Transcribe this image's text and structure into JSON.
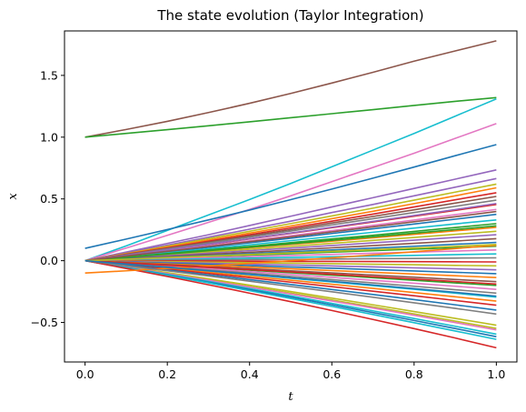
{
  "chart_data": {
    "type": "line",
    "title": "The state evolution (Taylor Integration)",
    "xlabel": "t",
    "ylabel": "x",
    "xlim": [
      -0.05,
      1.05
    ],
    "ylim": [
      -0.82,
      1.86
    ],
    "xticks": [
      0.0,
      0.2,
      0.4,
      0.6,
      0.8,
      1.0
    ],
    "xtick_labels": [
      "0.0",
      "0.2",
      "0.4",
      "0.6",
      "0.8",
      "1.0"
    ],
    "yticks": [
      -0.5,
      0.0,
      0.5,
      1.0,
      1.5
    ],
    "ytick_labels": [
      "−0.5",
      "0.0",
      "0.5",
      "1.0",
      "1.5"
    ],
    "grid": false,
    "legend": "none",
    "x": [
      0.0,
      0.1,
      0.2,
      0.3,
      0.4,
      0.5,
      0.6,
      0.7,
      0.8,
      0.9,
      1.0
    ],
    "palette": [
      "#1f77b4",
      "#ff7f0e",
      "#2ca02c",
      "#d62728",
      "#9467bd",
      "#8c564b",
      "#e377c2",
      "#7f7f7f",
      "#bcbd22",
      "#17becf"
    ],
    "series": [
      {
        "color": "#8c564b",
        "values": [
          1.0,
          1.062,
          1.128,
          1.199,
          1.274,
          1.354,
          1.438,
          1.525,
          1.615,
          1.698,
          1.78
        ]
      },
      {
        "color": "#2ca02c",
        "values": [
          1.0,
          1.03,
          1.061,
          1.092,
          1.124,
          1.157,
          1.19,
          1.223,
          1.257,
          1.29,
          1.32
        ]
      },
      {
        "color": "#17becf",
        "values": [
          0.0,
          0.12,
          0.245,
          0.37,
          0.495,
          0.625,
          0.76,
          0.895,
          1.03,
          1.17,
          1.31
        ]
      },
      {
        "color": "#e377c2",
        "values": [
          0.0,
          0.102,
          0.205,
          0.31,
          0.415,
          0.525,
          0.64,
          0.755,
          0.87,
          0.99,
          1.11
        ]
      },
      {
        "color": "#1f77b4",
        "values": [
          0.1,
          0.175,
          0.252,
          0.33,
          0.41,
          0.494,
          0.58,
          0.668,
          0.758,
          0.85,
          0.94
        ]
      },
      {
        "color": "#9467bd",
        "values": [
          0.0,
          0.07,
          0.14,
          0.21,
          0.285,
          0.36,
          0.435,
          0.51,
          0.585,
          0.66,
          0.735
        ]
      },
      {
        "color": "#9467bd",
        "values": [
          0.0,
          0.063,
          0.126,
          0.19,
          0.255,
          0.32,
          0.39,
          0.455,
          0.525,
          0.595,
          0.665
        ]
      },
      {
        "color": "#bcbd22",
        "values": [
          0.0,
          0.058,
          0.118,
          0.178,
          0.238,
          0.3,
          0.362,
          0.425,
          0.49,
          0.555,
          0.62
        ]
      },
      {
        "color": "#ff7f0e",
        "values": [
          0.0,
          0.055,
          0.11,
          0.166,
          0.223,
          0.28,
          0.34,
          0.4,
          0.462,
          0.525,
          0.59
        ]
      },
      {
        "color": "#d62728",
        "values": [
          0.0,
          0.052,
          0.104,
          0.157,
          0.21,
          0.265,
          0.32,
          0.377,
          0.435,
          0.493,
          0.55
        ]
      },
      {
        "color": "#8c564b",
        "values": [
          0.0,
          0.05,
          0.1,
          0.15,
          0.2,
          0.252,
          0.305,
          0.358,
          0.412,
          0.466,
          0.52
        ]
      },
      {
        "color": "#7f7f7f",
        "values": [
          0.0,
          0.047,
          0.095,
          0.143,
          0.191,
          0.24,
          0.29,
          0.34,
          0.39,
          0.44,
          0.49
        ]
      },
      {
        "color": "#d62728",
        "values": [
          0.0,
          0.043,
          0.087,
          0.131,
          0.176,
          0.221,
          0.267,
          0.313,
          0.36,
          0.407,
          0.455
        ]
      },
      {
        "color": "#e377c2",
        "values": [
          0.0,
          0.04,
          0.08,
          0.12,
          0.161,
          0.202,
          0.244,
          0.286,
          0.329,
          0.372,
          0.415
        ]
      },
      {
        "color": "#1f77b4",
        "values": [
          0.0,
          0.036,
          0.072,
          0.108,
          0.145,
          0.182,
          0.22,
          0.258,
          0.297,
          0.336,
          0.375
        ]
      },
      {
        "color": "#17becf",
        "values": [
          0.0,
          0.032,
          0.064,
          0.096,
          0.129,
          0.162,
          0.196,
          0.23,
          0.264,
          0.298,
          0.33
        ]
      },
      {
        "color": "#2ca02c",
        "values": [
          0.0,
          0.029,
          0.058,
          0.087,
          0.116,
          0.146,
          0.176,
          0.206,
          0.237,
          0.268,
          0.3
        ]
      },
      {
        "color": "#ff7f0e",
        "values": [
          0.0,
          0.026,
          0.052,
          0.078,
          0.104,
          0.131,
          0.158,
          0.185,
          0.213,
          0.241,
          0.27
        ]
      },
      {
        "color": "#bcbd22",
        "values": [
          0.0,
          0.023,
          0.046,
          0.069,
          0.092,
          0.116,
          0.14,
          0.164,
          0.188,
          0.213,
          0.238
        ]
      },
      {
        "color": "#9467bd",
        "values": [
          0.0,
          0.02,
          0.04,
          0.06,
          0.081,
          0.102,
          0.123,
          0.144,
          0.166,
          0.188,
          0.21
        ]
      },
      {
        "color": "#8c564b",
        "values": [
          0.0,
          0.017,
          0.034,
          0.051,
          0.068,
          0.086,
          0.104,
          0.122,
          0.14,
          0.159,
          0.178
        ]
      },
      {
        "color": "#1f77b4",
        "values": [
          0.0,
          0.014,
          0.028,
          0.042,
          0.057,
          0.072,
          0.087,
          0.102,
          0.117,
          0.133,
          0.148
        ]
      },
      {
        "color": "#2ca02c",
        "values": [
          0.0,
          0.011,
          0.022,
          0.033,
          0.045,
          0.057,
          0.069,
          0.081,
          0.093,
          0.105,
          0.117
        ]
      },
      {
        "color": "#e377c2",
        "values": [
          0.0,
          0.008,
          0.016,
          0.025,
          0.033,
          0.042,
          0.051,
          0.06,
          0.069,
          0.078,
          0.087
        ]
      },
      {
        "color": "#17becf",
        "values": [
          0.0,
          0.005,
          0.01,
          0.015,
          0.021,
          0.026,
          0.032,
          0.037,
          0.043,
          0.049,
          0.055
        ]
      },
      {
        "color": "#7f7f7f",
        "values": [
          0.0,
          0.002,
          0.004,
          0.006,
          0.009,
          0.011,
          0.013,
          0.016,
          0.018,
          0.021,
          0.023
        ]
      },
      {
        "color": "#d62728",
        "values": [
          0.0,
          -0.001,
          -0.002,
          -0.003,
          -0.004,
          -0.005,
          -0.006,
          -0.007,
          -0.008,
          -0.009,
          -0.01
        ]
      },
      {
        "color": "#bcbd22",
        "values": [
          0.0,
          -0.004,
          -0.008,
          -0.012,
          -0.016,
          -0.02,
          -0.024,
          -0.029,
          -0.033,
          -0.038,
          -0.042
        ]
      },
      {
        "color": "#9467bd",
        "values": [
          0.0,
          -0.007,
          -0.014,
          -0.021,
          -0.028,
          -0.035,
          -0.043,
          -0.05,
          -0.058,
          -0.066,
          -0.074
        ]
      },
      {
        "color": "#1f77b4",
        "values": [
          0.0,
          -0.01,
          -0.02,
          -0.03,
          -0.04,
          -0.051,
          -0.061,
          -0.072,
          -0.083,
          -0.094,
          -0.105
        ]
      },
      {
        "color": "#ff7f0e",
        "values": [
          0.0,
          -0.013,
          -0.026,
          -0.039,
          -0.052,
          -0.066,
          -0.08,
          -0.094,
          -0.108,
          -0.122,
          -0.137
        ]
      },
      {
        "color": "#8c564b",
        "values": [
          0.0,
          -0.016,
          -0.032,
          -0.048,
          -0.065,
          -0.082,
          -0.099,
          -0.116,
          -0.134,
          -0.152,
          -0.17
        ]
      },
      {
        "color": "#2ca02c",
        "values": [
          0.0,
          -0.019,
          -0.038,
          -0.057,
          -0.077,
          -0.097,
          -0.117,
          -0.138,
          -0.159,
          -0.18,
          -0.2
        ]
      },
      {
        "color": "#e377c2",
        "values": [
          0.0,
          -0.022,
          -0.044,
          -0.066,
          -0.089,
          -0.112,
          -0.135,
          -0.159,
          -0.183,
          -0.207,
          -0.232
        ]
      },
      {
        "color": "#7f7f7f",
        "values": [
          0.0,
          -0.025,
          -0.05,
          -0.075,
          -0.101,
          -0.127,
          -0.153,
          -0.18,
          -0.207,
          -0.235,
          -0.263
        ]
      },
      {
        "color": "#17becf",
        "values": [
          0.0,
          -0.028,
          -0.056,
          -0.084,
          -0.113,
          -0.142,
          -0.172,
          -0.202,
          -0.232,
          -0.263,
          -0.295
        ]
      },
      {
        "color": "#ff7f0e",
        "values": [
          0.0,
          -0.031,
          -0.062,
          -0.094,
          -0.126,
          -0.158,
          -0.191,
          -0.224,
          -0.258,
          -0.292,
          -0.327
        ]
      },
      {
        "color": "#d62728",
        "values": [
          0.0,
          -0.034,
          -0.068,
          -0.103,
          -0.138,
          -0.174,
          -0.21,
          -0.247,
          -0.284,
          -0.322,
          -0.36
        ]
      },
      {
        "color": "#1f77b4",
        "values": [
          0.0,
          -0.038,
          -0.076,
          -0.114,
          -0.153,
          -0.193,
          -0.233,
          -0.274,
          -0.315,
          -0.357,
          -0.4
        ]
      },
      {
        "color": "#bcbd22",
        "values": [
          0.0,
          -0.048,
          -0.097,
          -0.147,
          -0.198,
          -0.25,
          -0.303,
          -0.357,
          -0.412,
          -0.467,
          -0.522
        ]
      },
      {
        "color": "#bcbd22",
        "values": [
          0.0,
          -0.051,
          -0.103,
          -0.155,
          -0.209,
          -0.263,
          -0.318,
          -0.374,
          -0.431,
          -0.489,
          -0.548
        ]
      },
      {
        "color": "#e377c2",
        "values": [
          0.0,
          -0.052,
          -0.105,
          -0.159,
          -0.214,
          -0.27,
          -0.326,
          -0.383,
          -0.442,
          -0.501,
          -0.56
        ]
      },
      {
        "color": "#17becf",
        "values": [
          0.0,
          -0.055,
          -0.111,
          -0.168,
          -0.226,
          -0.285,
          -0.345,
          -0.406,
          -0.468,
          -0.531,
          -0.595
        ]
      },
      {
        "color": "#1f77b4",
        "values": [
          0.0,
          -0.057,
          -0.115,
          -0.174,
          -0.234,
          -0.295,
          -0.357,
          -0.42,
          -0.484,
          -0.549,
          -0.615
        ]
      },
      {
        "color": "#17becf",
        "values": [
          0.0,
          -0.059,
          -0.119,
          -0.18,
          -0.243,
          -0.306,
          -0.37,
          -0.436,
          -0.502,
          -0.569,
          -0.637
        ]
      },
      {
        "color": "#d62728",
        "values": [
          0.0,
          -0.063,
          -0.128,
          -0.195,
          -0.263,
          -0.332,
          -0.403,
          -0.476,
          -0.55,
          -0.626,
          -0.705
        ]
      },
      {
        "color": "#ff7f0e",
        "values": [
          -0.1,
          -0.082,
          -0.063,
          -0.043,
          -0.022,
          0.0,
          0.023,
          0.047,
          0.072,
          0.098,
          0.125
        ]
      },
      {
        "color": "#9467bd",
        "values": [
          0.0,
          0.044,
          0.088,
          0.133,
          0.178,
          0.224,
          0.271,
          0.318,
          0.366,
          0.414,
          0.463
        ]
      },
      {
        "color": "#2ca02c",
        "values": [
          0.0,
          0.027,
          0.054,
          0.081,
          0.109,
          0.137,
          0.165,
          0.194,
          0.223,
          0.252,
          0.282
        ]
      },
      {
        "color": "#d62728",
        "values": [
          0.0,
          -0.018,
          -0.036,
          -0.054,
          -0.072,
          -0.091,
          -0.11,
          -0.129,
          -0.149,
          -0.169,
          -0.189
        ]
      },
      {
        "color": "#7f7f7f",
        "values": [
          0.0,
          -0.041,
          -0.082,
          -0.124,
          -0.166,
          -0.209,
          -0.252,
          -0.296,
          -0.341,
          -0.386,
          -0.432
        ]
      },
      {
        "color": "#8c564b",
        "values": [
          0.0,
          0.038,
          0.076,
          0.115,
          0.154,
          0.193,
          0.233,
          0.274,
          0.315,
          0.356,
          0.398
        ]
      },
      {
        "color": "#bcbd22",
        "values": [
          0.0,
          0.012,
          0.025,
          0.037,
          0.05,
          0.063,
          0.076,
          0.089,
          0.103,
          0.117,
          0.131
        ]
      },
      {
        "color": "#1f77b4",
        "values": [
          0.0,
          -0.027,
          -0.054,
          -0.082,
          -0.11,
          -0.138,
          -0.167,
          -0.196,
          -0.226,
          -0.256,
          -0.287
        ]
      }
    ]
  }
}
